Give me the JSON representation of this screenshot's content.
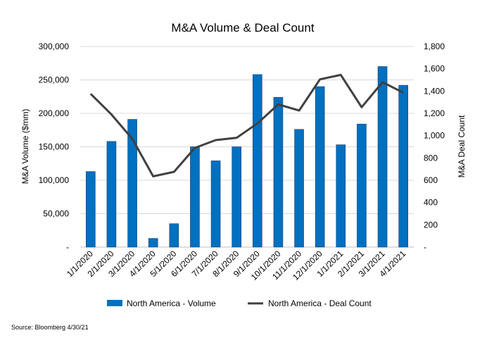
{
  "chart_data": {
    "type": "bar",
    "title": "M&A Volume & Deal Count",
    "categories": [
      "1/1/2020",
      "2/1/2020",
      "3/1/2020",
      "4/1/2020",
      "5/1/2020",
      "6/1/2020",
      "7/1/2020",
      "8/1/2020",
      "9/1/2020",
      "10/1/2020",
      "11/1/2020",
      "12/1/2020",
      "1/1/2021",
      "2/1/2021",
      "3/1/2021",
      "4/1/2021"
    ],
    "series": [
      {
        "name": "North America - Volume",
        "type": "bar",
        "axis": "left",
        "color": "#0070C0",
        "values": [
          113000,
          158000,
          191000,
          13000,
          35000,
          150000,
          129000,
          150000,
          258000,
          224000,
          176000,
          240000,
          153000,
          184000,
          270000,
          242000
        ]
      },
      {
        "name": "North America - Deal Count",
        "type": "line",
        "axis": "right",
        "color": "#404040",
        "values": [
          1375,
          1190,
          970,
          635,
          675,
          890,
          960,
          980,
          1110,
          1280,
          1225,
          1505,
          1545,
          1255,
          1480,
          1385
        ]
      }
    ],
    "ylabel": "M&A Volume ($mm)",
    "ylim": [
      0,
      300000
    ],
    "yticks": [
      "-",
      "50,000",
      "100,000",
      "150,000",
      "200,000",
      "250,000",
      "300,000"
    ],
    "y2label": "M&A Deal Count",
    "y2lim": [
      0,
      1800
    ],
    "y2ticks": [
      "-",
      "200",
      "400",
      "600",
      "800",
      "1,000",
      "1,200",
      "1,400",
      "1,600",
      "1,800"
    ],
    "grid": true,
    "legend": "bottom"
  },
  "source": "Source: Bloomberg 4/30/21"
}
